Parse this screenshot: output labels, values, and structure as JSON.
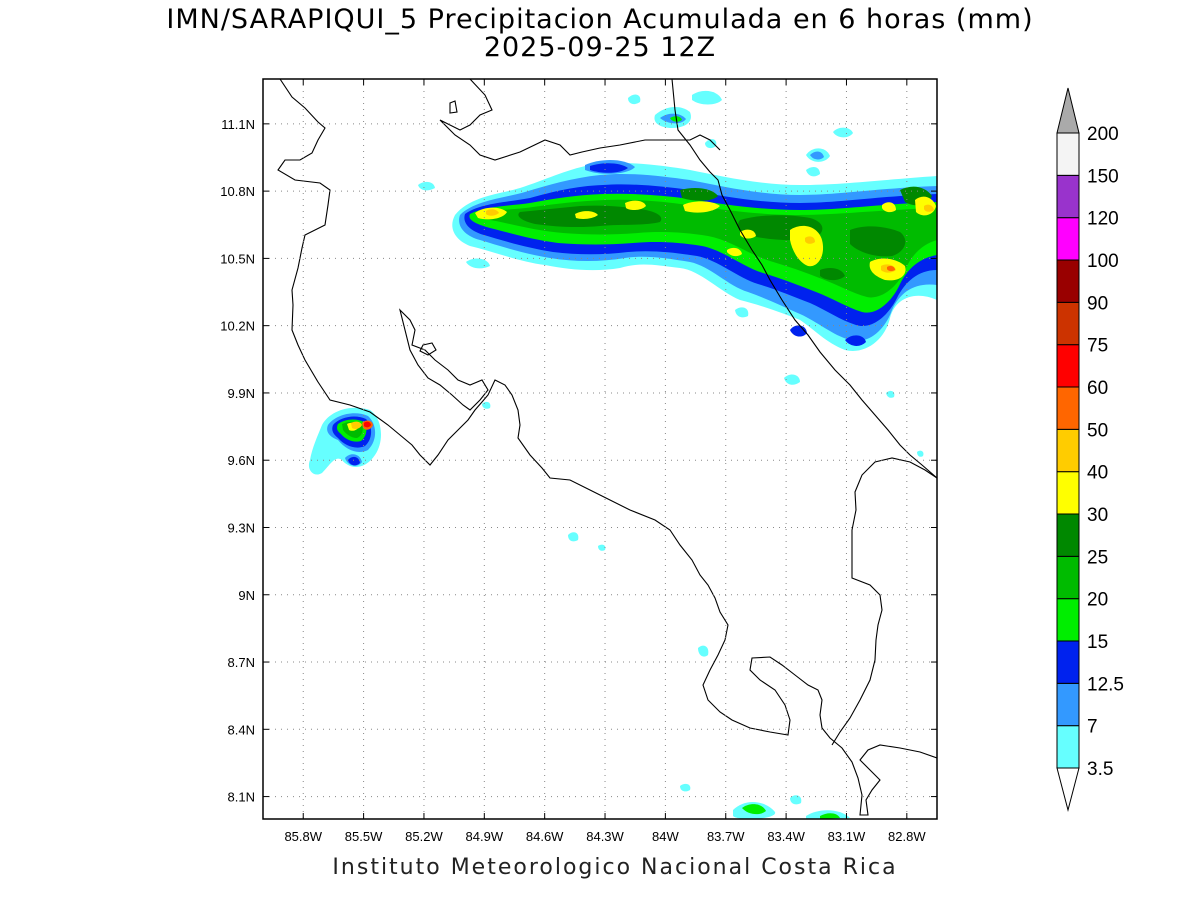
{
  "title": {
    "line1": "IMN/SARAPIQUI_5 Precipitacion Acumulada en 6 horas (mm)",
    "line2": "2025-09-25 12Z"
  },
  "footer": "Instituto Meteorologico Nacional Costa Rica",
  "map": {
    "lon_range": [
      -86.0,
      -82.65
    ],
    "lat_range": [
      8.0,
      11.3
    ],
    "lat_ticks": [
      {
        "value": 11.1,
        "label": "11.1N"
      },
      {
        "value": 10.8,
        "label": "10.8N"
      },
      {
        "value": 10.5,
        "label": "10.5N"
      },
      {
        "value": 10.2,
        "label": "10.2N"
      },
      {
        "value": 9.9,
        "label": "9.9N"
      },
      {
        "value": 9.6,
        "label": "9.6N"
      },
      {
        "value": 9.3,
        "label": "9.3N"
      },
      {
        "value": 9.0,
        "label": "9N"
      },
      {
        "value": 8.7,
        "label": "8.7N"
      },
      {
        "value": 8.4,
        "label": "8.4N"
      },
      {
        "value": 8.1,
        "label": "8.1N"
      }
    ],
    "lon_ticks": [
      {
        "value": -85.8,
        "label": "85.8W"
      },
      {
        "value": -85.5,
        "label": "85.5W"
      },
      {
        "value": -85.2,
        "label": "85.2W"
      },
      {
        "value": -84.9,
        "label": "84.9W"
      },
      {
        "value": -84.6,
        "label": "84.6W"
      },
      {
        "value": -84.3,
        "label": "84.3W"
      },
      {
        "value": -84.0,
        "label": "84W"
      },
      {
        "value": -83.7,
        "label": "83.7W"
      },
      {
        "value": -83.4,
        "label": "83.4W"
      },
      {
        "value": -83.1,
        "label": "83.1W"
      },
      {
        "value": -82.8,
        "label": "82.8W"
      }
    ],
    "grid": "dotted"
  },
  "colorbar": {
    "levels": [
      "3.5",
      "7",
      "12.5",
      "15",
      "20",
      "25",
      "30",
      "40",
      "50",
      "60",
      "75",
      "90",
      "100",
      "120",
      "150",
      "200"
    ],
    "colors": [
      "#66ffff",
      "#3399ff",
      "#0022ee",
      "#00ee00",
      "#00bb00",
      "#008800",
      "#ffff00",
      "#ffcc00",
      "#ff6600",
      "#ff0000",
      "#cc3300",
      "#990000",
      "#ff00ff",
      "#9933cc",
      "#f4f4f4"
    ],
    "top_arrow_color": "#aaaaaa",
    "bottom_arrow_color": "#ffffff"
  }
}
